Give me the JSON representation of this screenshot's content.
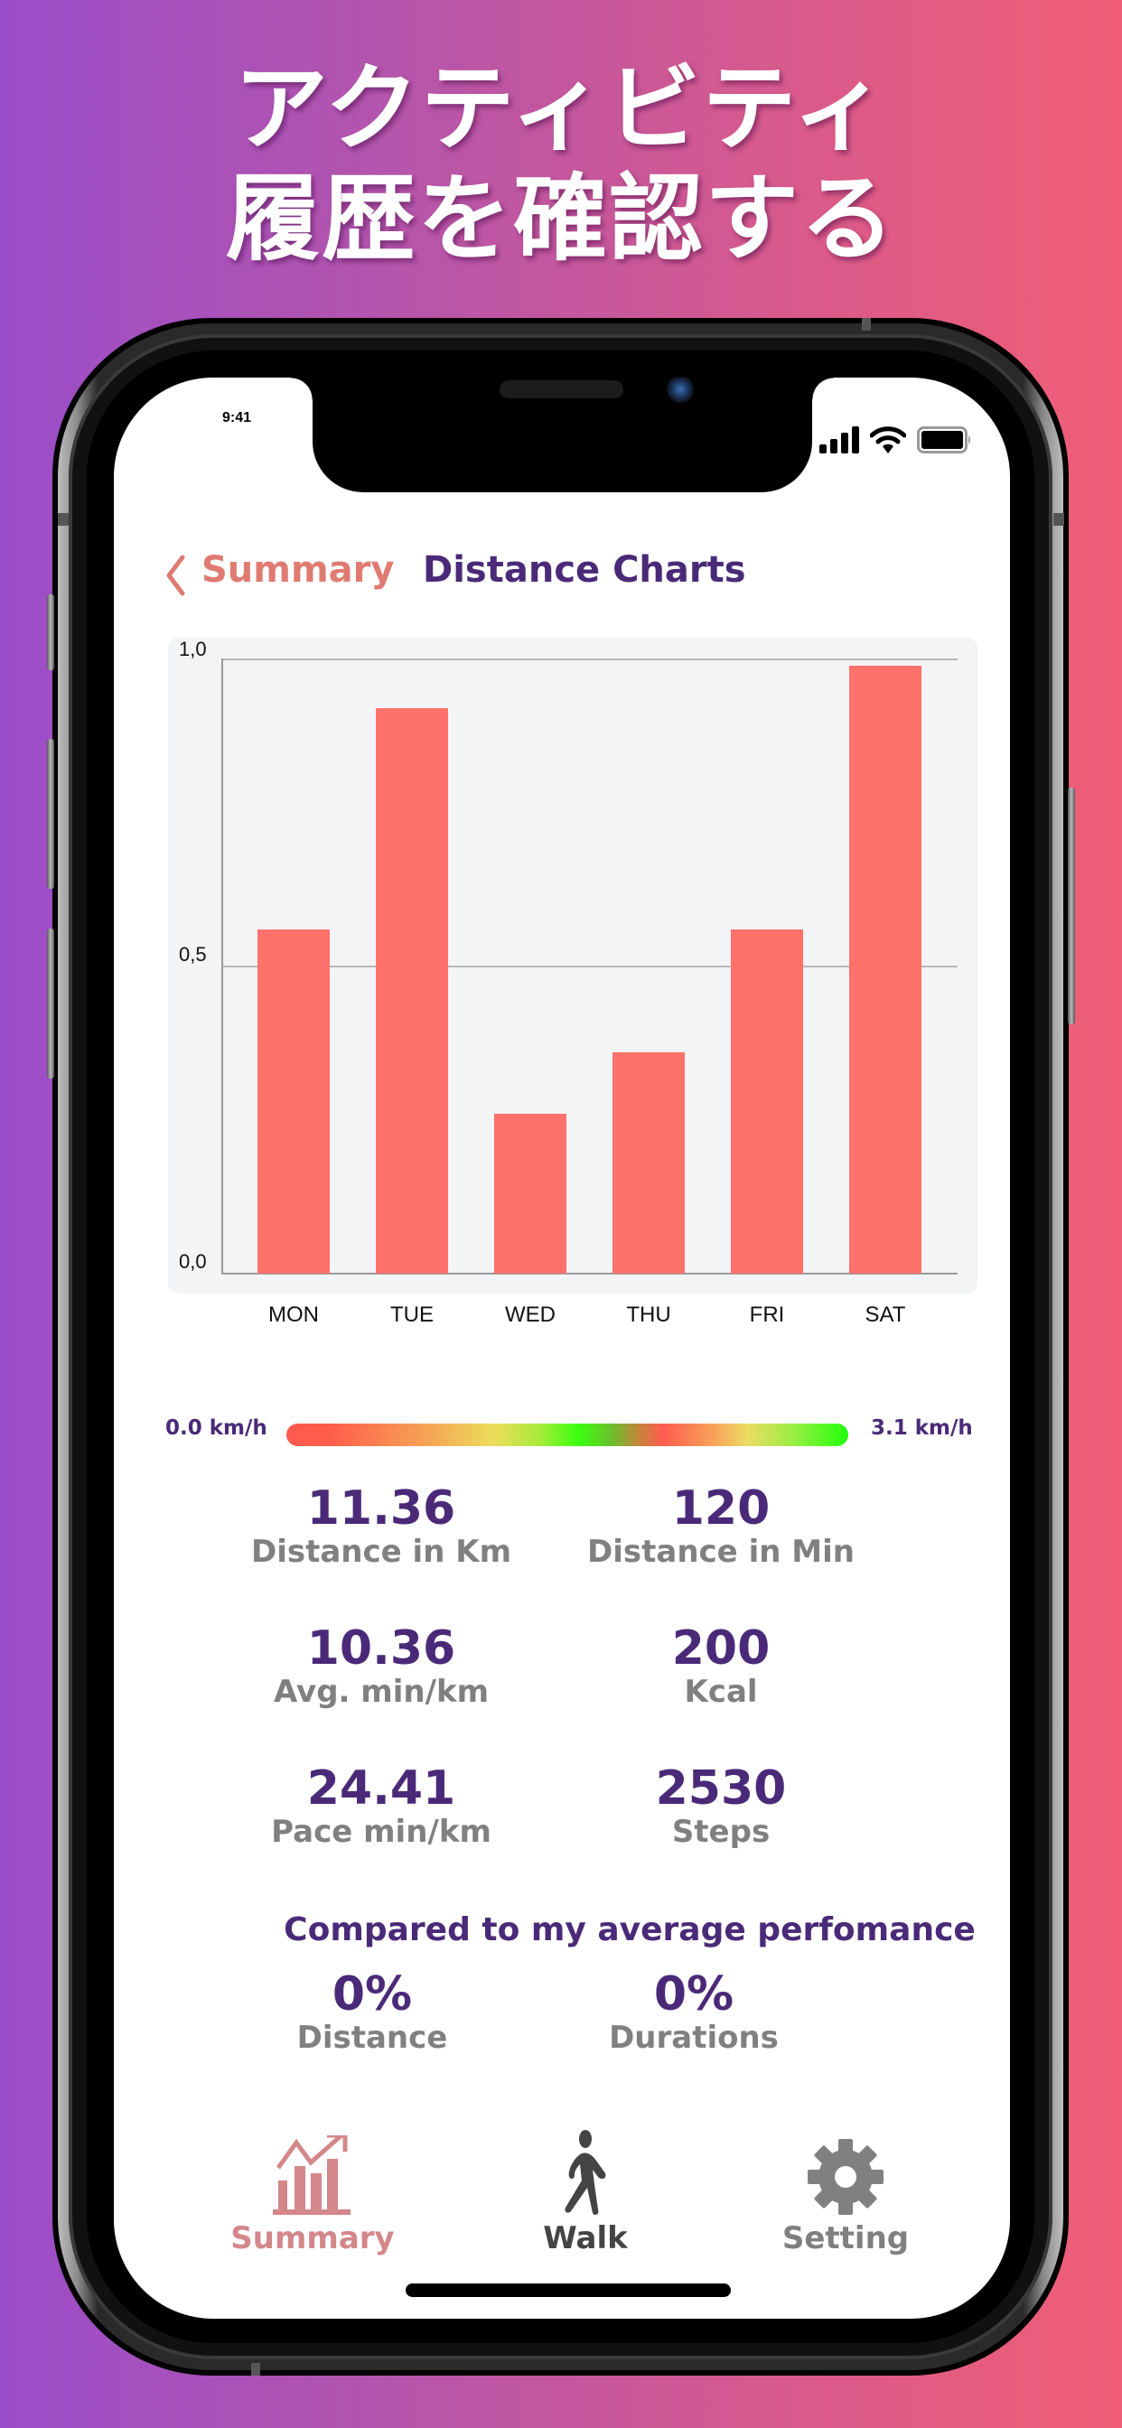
{
  "promo": {
    "headline_line1": "アクティビティ",
    "headline_line2": "履歴を確認する"
  },
  "status_bar": {
    "time": "9:41",
    "icons": [
      "cellular-signal-icon",
      "wifi-icon",
      "battery-icon"
    ]
  },
  "nav": {
    "back_label": "Summary",
    "title": "Distance Charts"
  },
  "chart_data": {
    "type": "bar",
    "title": "Distance Charts",
    "categories": [
      "MON",
      "TUE",
      "WED",
      "THU",
      "FRI",
      "SAT"
    ],
    "values": [
      0.56,
      0.92,
      0.26,
      0.36,
      0.56,
      0.99
    ],
    "xlabel": "",
    "ylabel": "",
    "ylim": [
      0.0,
      1.0
    ],
    "y_ticks": [
      "0,0",
      "0,5",
      "1,0"
    ],
    "grid": true,
    "legend": null,
    "bar_color": "#ff716b",
    "background": "#f3f4f6"
  },
  "speed_scale": {
    "min_label": "0.0 km/h",
    "max_label": "3.1 km/h"
  },
  "metrics": [
    {
      "value": "11.36",
      "label": "Distance in Km"
    },
    {
      "value": "120",
      "label": "Distance in Min"
    },
    {
      "value": "10.36",
      "label": "Avg. min/km"
    },
    {
      "value": "200",
      "label": "Kcal"
    },
    {
      "value": "24.41",
      "label": "Pace min/km"
    },
    {
      "value": "2530",
      "label": "Steps"
    }
  ],
  "comparison": {
    "title": "Compared to my average perfomance",
    "items": [
      {
        "value": "0%",
        "label": "Distance"
      },
      {
        "value": "0%",
        "label": "Durations"
      }
    ]
  },
  "tab_bar": {
    "items": [
      {
        "label": "Summary",
        "icon": "chart-growth-icon",
        "color": "#d4878a"
      },
      {
        "label": "Walk",
        "icon": "walking-person-icon",
        "color": "#444444"
      },
      {
        "label": "Setting",
        "icon": "gear-icon",
        "color": "#808080"
      }
    ]
  },
  "colors": {
    "accent_purple": "#4a2a78",
    "accent_coral": "#e07b72",
    "label_gray": "#808080",
    "bar_red": "#ff716b"
  }
}
